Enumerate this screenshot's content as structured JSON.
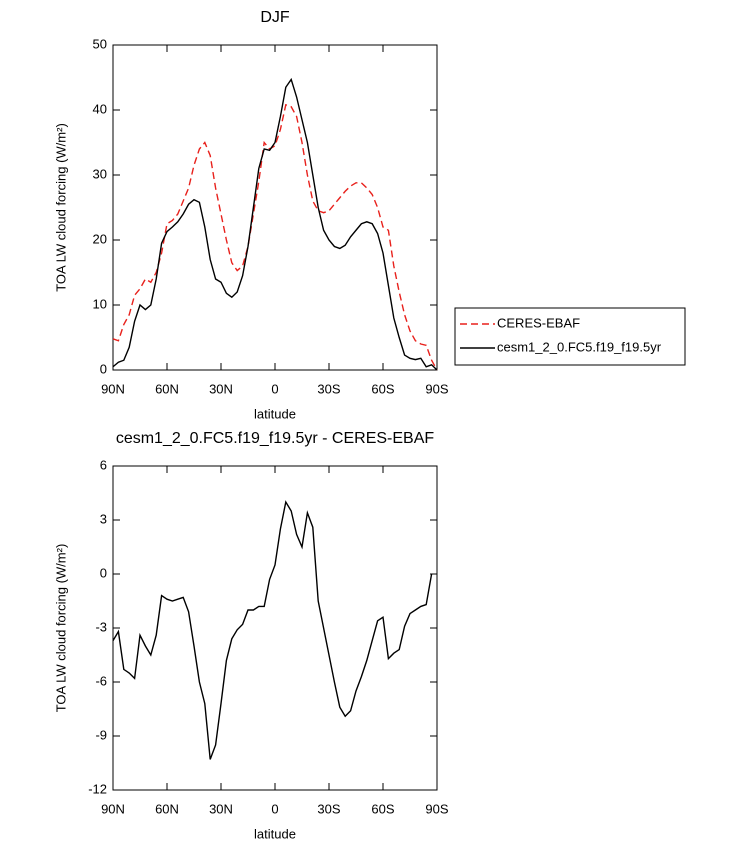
{
  "chart_data": [
    {
      "type": "line",
      "title": "DJF",
      "x_label": "latitude",
      "y_label": "TOA LW cloud forcing (W/m²)",
      "x": [
        90,
        87,
        84,
        81,
        78,
        75,
        72,
        69,
        66,
        63,
        60,
        57,
        54,
        51,
        48,
        45,
        42,
        39,
        36,
        33,
        30,
        27,
        24,
        21,
        18,
        15,
        12,
        9,
        6,
        3,
        0,
        -3,
        -6,
        -9,
        -12,
        -15,
        -18,
        -21,
        -24,
        -27,
        -30,
        -33,
        -36,
        -39,
        -42,
        -45,
        -48,
        -51,
        -54,
        -57,
        -60,
        -63,
        -66,
        -69,
        -72,
        -75,
        -78,
        -81,
        -84,
        -87,
        -90
      ],
      "xlim": [
        90,
        -90
      ],
      "xticks": [
        {
          "value": 90,
          "label": "90N"
        },
        {
          "value": 60,
          "label": "60N"
        },
        {
          "value": 30,
          "label": "30N"
        },
        0,
        {
          "value": -30,
          "label": "30S"
        },
        {
          "value": -60,
          "label": "60S"
        },
        {
          "value": -90,
          "label": "90S"
        }
      ],
      "ylim": [
        0,
        50
      ],
      "yticks": [
        0,
        10,
        20,
        30,
        40,
        50
      ],
      "legend": "right",
      "series": [
        {
          "name": "CERES-EBAF",
          "color": "#e8211c",
          "dashed": true,
          "values": [
            4.8,
            4.5,
            7,
            8.5,
            11.5,
            12.5,
            14,
            13.5,
            15,
            18,
            22.5,
            23,
            24,
            26,
            28,
            31.5,
            34,
            35,
            33,
            28,
            24,
            20,
            16.5,
            15.3,
            16,
            19,
            24,
            29,
            35,
            34,
            34.5,
            37,
            40.8,
            40.5,
            39,
            35,
            30,
            26,
            24.5,
            24.2,
            24.5,
            25.5,
            26.5,
            27.5,
            28.3,
            28.8,
            28.8,
            28,
            27,
            25,
            22,
            21.5,
            16,
            12,
            8.5,
            6,
            4.5,
            4,
            3.8,
            1.5,
            0
          ]
        },
        {
          "name": "cesm1_2_0.FC5.f19_f19.5yr",
          "color": "#000000",
          "dashed": false,
          "values": [
            0.5,
            1.2,
            1.5,
            3.5,
            7.5,
            10,
            9.3,
            10,
            14,
            19.5,
            21.3,
            22,
            22.8,
            24,
            25.5,
            26.2,
            25.8,
            22,
            17,
            14,
            13.5,
            11.8,
            11.2,
            12,
            14.5,
            19,
            25,
            31,
            34,
            33.8,
            35,
            39,
            43.5,
            44.7,
            42,
            38.5,
            35,
            30,
            25,
            21.5,
            20,
            19,
            18.7,
            19.2,
            20.5,
            21.5,
            22.5,
            22.8,
            22.5,
            21,
            18,
            13,
            8,
            5,
            2.3,
            1.8,
            1.6,
            1.8,
            0.5,
            0.8,
            0
          ]
        }
      ]
    },
    {
      "type": "line",
      "title": "cesm1_2_0.FC5.f19_f19.5yr - CERES-EBAF",
      "x_label": "latitude",
      "y_label": "TOA LW cloud forcing (W/m²)",
      "x": [
        90,
        87,
        84,
        81,
        78,
        75,
        72,
        69,
        66,
        63,
        60,
        57,
        54,
        51,
        48,
        45,
        42,
        39,
        36,
        33,
        30,
        27,
        24,
        21,
        18,
        15,
        12,
        9,
        6,
        3,
        0,
        -3,
        -6,
        -9,
        -12,
        -15,
        -18,
        -21,
        -24,
        -27,
        -30,
        -33,
        -36,
        -39,
        -42,
        -45,
        -48,
        -51,
        -54,
        -57,
        -60,
        -63,
        -66,
        -69,
        -72,
        -75,
        -78,
        -81,
        -84,
        -87
      ],
      "xlim": [
        90,
        -90
      ],
      "xticks": [
        {
          "value": 90,
          "label": "90N"
        },
        {
          "value": 60,
          "label": "60N"
        },
        {
          "value": 30,
          "label": "30N"
        },
        0,
        {
          "value": -30,
          "label": "30S"
        },
        {
          "value": -60,
          "label": "60S"
        },
        {
          "value": -90,
          "label": "90S"
        }
      ],
      "ylim": [
        -12,
        6
      ],
      "yticks": [
        -12,
        -9,
        -6,
        -3,
        0,
        3,
        6
      ],
      "color": "#000000",
      "values": [
        -3.7,
        -3.2,
        -5.3,
        -5.5,
        -5.8,
        -3.4,
        -4,
        -4.5,
        -3.4,
        -1.2,
        -1.4,
        -1.5,
        -1.4,
        -1.3,
        -2.1,
        -4,
        -6,
        -7.2,
        -10.3,
        -9.5,
        -7.2,
        -4.8,
        -3.6,
        -3.1,
        -2.8,
        -2,
        -2,
        -1.8,
        -1.8,
        -0.3,
        0.5,
        2.5,
        4,
        3.5,
        2.2,
        1.5,
        3.4,
        2.6,
        -1.5,
        -3,
        -4.5,
        -6,
        -7.4,
        -7.9,
        -7.6,
        -6.5,
        -5.7,
        -4.8,
        -3.7,
        -2.6,
        -2.4,
        -4.7,
        -4.4,
        -4.2,
        -2.9,
        -2.2,
        -2,
        -1.8,
        -1.7,
        0
      ]
    }
  ]
}
